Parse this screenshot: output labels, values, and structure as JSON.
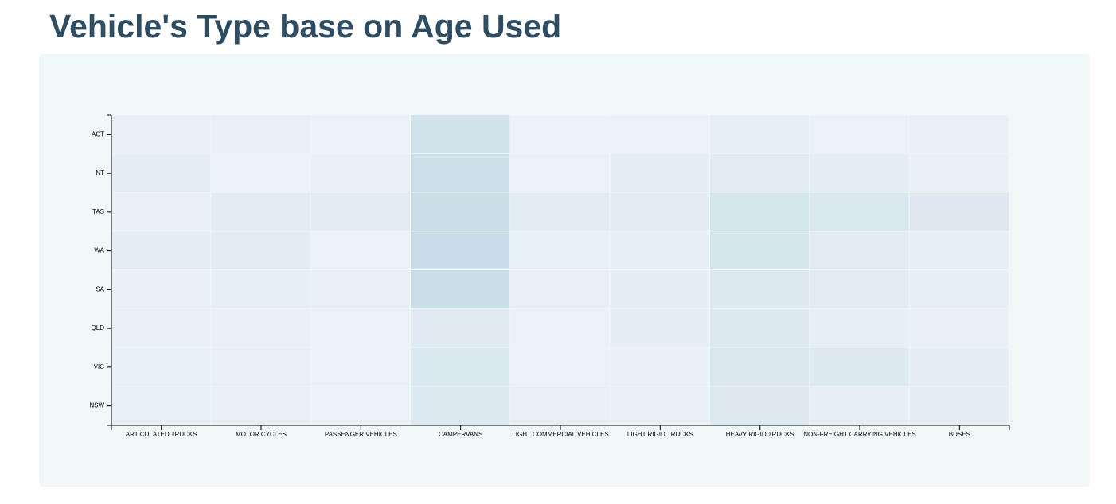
{
  "page": {
    "title": "Vehicle's Type base on Age Used"
  },
  "colors": {
    "title": "#2e4c62",
    "panel_background": "#eff7f8",
    "cell_low": "#eef4f7",
    "cell_high": "#c6dce6",
    "axis": "#000000"
  },
  "chart_data": {
    "type": "heatmap",
    "title": "Vehicle's Type base on Age Used",
    "xlabel": "",
    "ylabel": "",
    "x_categories": [
      "ARTICULATED TRUCKS",
      "MOTOR CYCLES",
      "PASSENGER VEHICLES",
      "CAMPERVANS",
      "LIGHT COMMERCIAL VEHICLES",
      "LIGHT RIGID TRUCKS",
      "HEAVY RIGID TRUCKS",
      "NON-FREIGHT CARRYING VEHICLES",
      "BUSES"
    ],
    "y_categories": [
      "ACT",
      "NT",
      "TAS",
      "WA",
      "SA",
      "QLD",
      "VIC",
      "NSW"
    ],
    "values": [
      [
        0.15,
        0.15,
        0.08,
        0.7,
        0.06,
        0.08,
        0.2,
        0.1,
        0.15
      ],
      [
        0.25,
        0.02,
        0.12,
        0.82,
        0.1,
        0.28,
        0.32,
        0.28,
        0.15
      ],
      [
        0.12,
        0.3,
        0.3,
        0.92,
        0.3,
        0.35,
        0.62,
        0.52,
        0.4
      ],
      [
        0.28,
        0.3,
        0.08,
        0.95,
        0.18,
        0.2,
        0.62,
        0.35,
        0.2
      ],
      [
        0.12,
        0.2,
        0.15,
        0.9,
        0.15,
        0.25,
        0.42,
        0.35,
        0.2
      ],
      [
        0.15,
        0.12,
        0.1,
        0.38,
        0.08,
        0.25,
        0.42,
        0.2,
        0.15
      ],
      [
        0.18,
        0.15,
        0.1,
        0.5,
        0.1,
        0.12,
        0.48,
        0.42,
        0.25
      ],
      [
        0.18,
        0.15,
        0.1,
        0.42,
        0.15,
        0.12,
        0.4,
        0.2,
        0.22
      ]
    ],
    "value_scale": "relative intensity (0 = lightest, 1 = darkest)",
    "legend": "none",
    "grid": false
  }
}
